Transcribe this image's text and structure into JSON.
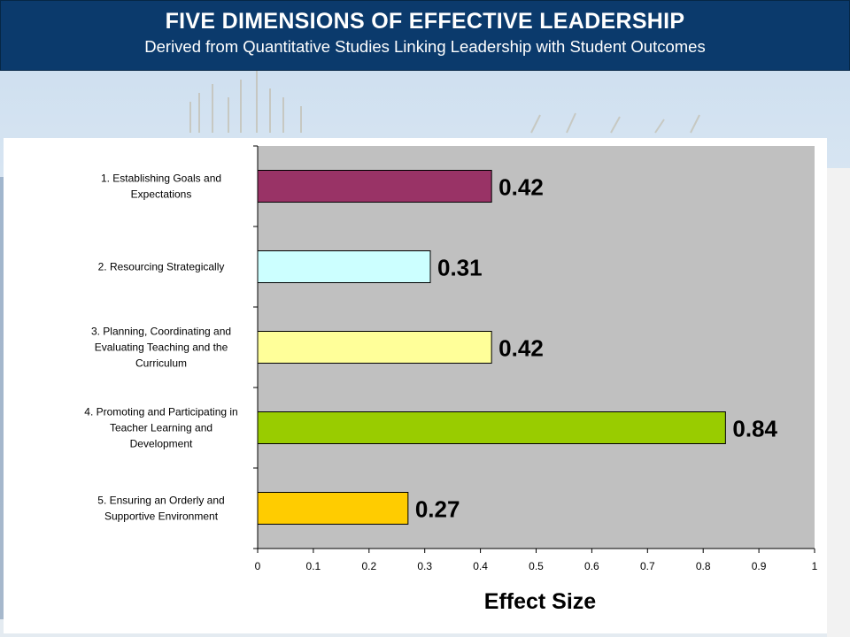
{
  "header": {
    "title": "FIVE DIMENSIONS  OF EFFECTIVE LEADERSHIP",
    "subtitle": "Derived from Quantitative Studies Linking Leadership with Student Outcomes"
  },
  "colors": {
    "header_bg": "#0b3a6c",
    "plot_bg": "#c0c0c0"
  },
  "chart_data": {
    "type": "bar",
    "orientation": "horizontal",
    "title": "",
    "xlabel": "Effect Size",
    "ylabel": "",
    "xlim": [
      0,
      1
    ],
    "x_ticks": [
      "0",
      "0.1",
      "0.2",
      "0.3",
      "0.4",
      "0.5",
      "0.6",
      "0.7",
      "0.8",
      "0.9",
      "1"
    ],
    "grid": false,
    "legend": "none",
    "categories": [
      [
        "1. Establishing Goals and",
        "Expectations"
      ],
      [
        "2. Resourcing Strategically"
      ],
      [
        "3. Planning, Coordinating and",
        "Evaluating Teaching and the",
        "Curriculum"
      ],
      [
        "4. Promoting and Participating in",
        "Teacher Learning and",
        "Development"
      ],
      [
        "5. Ensuring an Orderly and",
        "Supportive Environment"
      ]
    ],
    "values": [
      0.42,
      0.31,
      0.42,
      0.84,
      0.27
    ],
    "data_labels": [
      "0.42",
      "0.31",
      "0.42",
      "0.84",
      "0.27"
    ],
    "bar_colors": [
      "#993366",
      "#ccffff",
      "#ffff99",
      "#99cc00",
      "#ffcc00"
    ]
  }
}
